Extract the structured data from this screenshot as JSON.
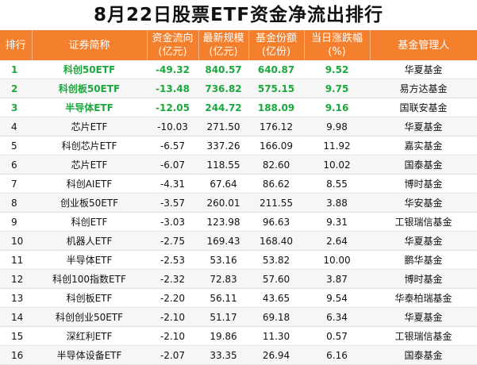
{
  "title": "8月22日股票ETF资金净流出排行",
  "colors": {
    "header_bg": "#f47f2c",
    "header_text": "#ffffff",
    "highlight_text": "#19a83c"
  },
  "headers": {
    "rank": "排行",
    "name": "证券简称",
    "flow_line1": "资金流向",
    "flow_line2": "(亿元)",
    "scale_line1": "最新规模",
    "scale_line2": "(亿元)",
    "shares_line1": "基金份额",
    "shares_line2": "(亿份)",
    "change_line1": "当日涨跌幅",
    "change_line2": "(%)",
    "manager": "基金管理人"
  },
  "rows": [
    {
      "rank": "1",
      "name": "科创50ETF",
      "flow": "-49.32",
      "scale": "840.57",
      "shares": "640.87",
      "change": "9.52",
      "manager": "华夏基金"
    },
    {
      "rank": "2",
      "name": "科创板50ETF",
      "flow": "-13.48",
      "scale": "736.82",
      "shares": "575.15",
      "change": "9.75",
      "manager": "易方达基金"
    },
    {
      "rank": "3",
      "name": "半导体ETF",
      "flow": "-12.05",
      "scale": "244.72",
      "shares": "188.09",
      "change": "9.16",
      "manager": "国联安基金"
    },
    {
      "rank": "4",
      "name": "芯片ETF",
      "flow": "-10.03",
      "scale": "271.50",
      "shares": "176.12",
      "change": "9.98",
      "manager": "华夏基金"
    },
    {
      "rank": "5",
      "name": "科创芯片ETF",
      "flow": "-6.57",
      "scale": "337.26",
      "shares": "166.09",
      "change": "11.92",
      "manager": "嘉实基金"
    },
    {
      "rank": "6",
      "name": "芯片ETF",
      "flow": "-6.07",
      "scale": "118.55",
      "shares": "82.60",
      "change": "10.02",
      "manager": "国泰基金"
    },
    {
      "rank": "7",
      "name": "科创AIETF",
      "flow": "-4.31",
      "scale": "67.64",
      "shares": "86.62",
      "change": "8.55",
      "manager": "博时基金"
    },
    {
      "rank": "8",
      "name": "创业板50ETF",
      "flow": "-3.57",
      "scale": "260.01",
      "shares": "211.55",
      "change": "3.88",
      "manager": "华安基金"
    },
    {
      "rank": "9",
      "name": "科创ETF",
      "flow": "-3.03",
      "scale": "123.98",
      "shares": "96.63",
      "change": "9.31",
      "manager": "工银瑞信基金"
    },
    {
      "rank": "10",
      "name": "机器人ETF",
      "flow": "-2.75",
      "scale": "169.43",
      "shares": "168.40",
      "change": "2.64",
      "manager": "华夏基金"
    },
    {
      "rank": "11",
      "name": "半导体ETF",
      "flow": "-2.53",
      "scale": "53.16",
      "shares": "53.82",
      "change": "10.00",
      "manager": "鹏华基金"
    },
    {
      "rank": "12",
      "name": "科创100指数ETF",
      "flow": "-2.32",
      "scale": "72.83",
      "shares": "57.60",
      "change": "3.87",
      "manager": "博时基金"
    },
    {
      "rank": "13",
      "name": "科创板ETF",
      "flow": "-2.20",
      "scale": "56.11",
      "shares": "43.65",
      "change": "9.54",
      "manager": "华泰柏瑞基金"
    },
    {
      "rank": "14",
      "name": "科创创业50ETF",
      "flow": "-2.10",
      "scale": "51.17",
      "shares": "69.18",
      "change": "6.34",
      "manager": "华夏基金"
    },
    {
      "rank": "15",
      "name": "深红利ETF",
      "flow": "-2.10",
      "scale": "19.86",
      "shares": "11.30",
      "change": "0.57",
      "manager": "工银瑞信基金"
    },
    {
      "rank": "16",
      "name": "半导体设备ETF",
      "flow": "-2.07",
      "scale": "33.35",
      "shares": "26.94",
      "change": "6.16",
      "manager": "国泰基金"
    }
  ]
}
